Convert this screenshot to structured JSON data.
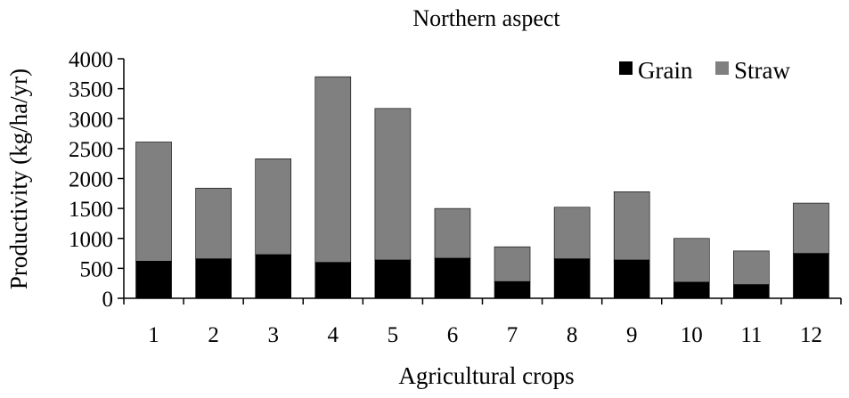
{
  "chart_data": {
    "type": "bar",
    "stacked": true,
    "title": "Northern aspect",
    "xlabel": "Agricultural crops",
    "ylabel": "Productivity (kg/ha/yr)",
    "categories": [
      "1",
      "2",
      "3",
      "4",
      "5",
      "6",
      "7",
      "8",
      "9",
      "10",
      "11",
      "12"
    ],
    "ylim": [
      0,
      4000
    ],
    "yticks": [
      0,
      500,
      1000,
      1500,
      2000,
      2500,
      3000,
      3500,
      4000
    ],
    "grid": false,
    "legend_position": "top-right",
    "series": [
      {
        "name": "Grain",
        "color": "#000000",
        "values": [
          620,
          660,
          730,
          600,
          640,
          670,
          280,
          660,
          640,
          270,
          230,
          750
        ]
      },
      {
        "name": "Straw",
        "color": "#808080",
        "values": [
          1990,
          1180,
          1600,
          3100,
          2530,
          830,
          580,
          860,
          1140,
          730,
          560,
          840
        ]
      }
    ]
  }
}
